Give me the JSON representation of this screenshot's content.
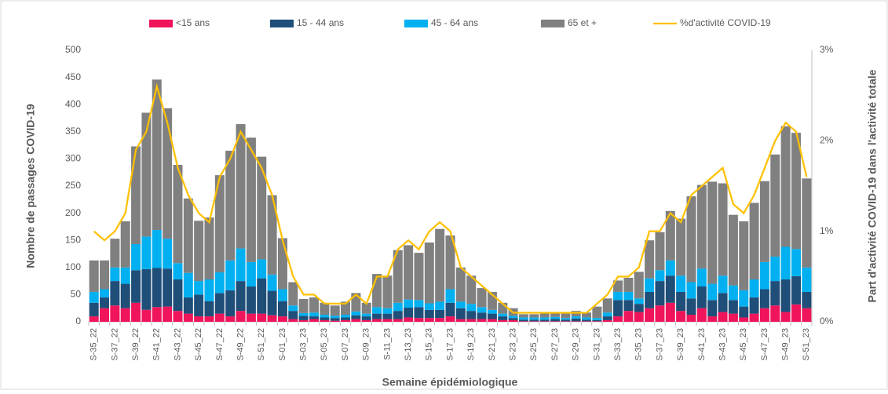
{
  "chart_data": {
    "type": "bar",
    "stacked": true,
    "x_label": "Semaine épidémiologique",
    "y_label": "Nombre de passages COVID-19",
    "y2_label": "Part d'activité COVID-19 dans l'activité totale",
    "categories": [
      "S-35_22",
      null,
      "S-37_22",
      null,
      "S-39_22",
      null,
      "S-41_22",
      null,
      "S-43_22",
      null,
      "S-45_22",
      null,
      "S-47_22",
      null,
      "S-49_22",
      null,
      "S-51_22",
      null,
      "S-01_23",
      null,
      "S-03_23",
      null,
      "S-05_23",
      null,
      "S-07_23",
      null,
      "S-09_23",
      null,
      "S-11_23",
      null,
      "S-13_23",
      null,
      "S-15_23",
      null,
      "S-17_23",
      null,
      "S-19_23",
      null,
      "S-21_23",
      null,
      "S-23_23",
      null,
      "S-25_23",
      null,
      "S-27_23",
      null,
      "S-29_23",
      null,
      "S-31_23",
      null,
      "S-33_23",
      null,
      "S-35_23",
      null,
      "S-37_23",
      null,
      "S-39_23",
      null,
      "S-41_23",
      null,
      "S-43_23",
      null,
      "S-45_23",
      null,
      "S-47_23",
      null,
      "S-49_23",
      null,
      "S-51_23"
    ],
    "series": [
      {
        "name": "<15 ans",
        "color": "#f0145a",
        "values": [
          10,
          25,
          30,
          25,
          35,
          22,
          27,
          28,
          20,
          15,
          10,
          10,
          15,
          10,
          20,
          15,
          15,
          12,
          10,
          5,
          3,
          5,
          3,
          2,
          3,
          5,
          3,
          5,
          5,
          5,
          8,
          7,
          7,
          7,
          10,
          5,
          5,
          5,
          5,
          3,
          3,
          1,
          1,
          1,
          1,
          1,
          1,
          1,
          1,
          3,
          10,
          20,
          18,
          25,
          30,
          35,
          20,
          13,
          25,
          10,
          18,
          15,
          8,
          15,
          25,
          30,
          18,
          32,
          25
        ]
      },
      {
        "name": "15 - 44 ans",
        "color": "#1f4e79",
        "values": [
          25,
          20,
          45,
          45,
          60,
          75,
          72,
          70,
          58,
          30,
          40,
          28,
          38,
          48,
          55,
          50,
          65,
          45,
          28,
          15,
          8,
          5,
          5,
          5,
          5,
          7,
          7,
          10,
          10,
          15,
          18,
          20,
          15,
          15,
          25,
          20,
          15,
          12,
          10,
          7,
          4,
          3,
          3,
          3,
          4,
          3,
          5,
          3,
          2,
          7,
          30,
          20,
          15,
          30,
          45,
          50,
          35,
          30,
          40,
          30,
          35,
          25,
          20,
          30,
          35,
          45,
          60,
          52,
          30
        ]
      },
      {
        "name": "45 - 64 ans",
        "color": "#00b0f0",
        "values": [
          20,
          15,
          25,
          30,
          48,
          60,
          70,
          55,
          30,
          45,
          25,
          40,
          38,
          55,
          60,
          45,
          35,
          30,
          22,
          10,
          5,
          7,
          5,
          4,
          5,
          7,
          5,
          12,
          10,
          15,
          15,
          13,
          12,
          15,
          25,
          12,
          13,
          10,
          7,
          5,
          4,
          4,
          4,
          4,
          4,
          3,
          4,
          4,
          4,
          7,
          15,
          15,
          10,
          25,
          20,
          28,
          30,
          30,
          33,
          30,
          32,
          27,
          30,
          33,
          50,
          45,
          60,
          50,
          45
        ]
      },
      {
        "name": "65 et +",
        "color": "#808080",
        "values": [
          58,
          53,
          53,
          85,
          180,
          228,
          277,
          240,
          181,
          137,
          111,
          114,
          179,
          202,
          229,
          229,
          189,
          146,
          94,
          43,
          26,
          28,
          22,
          19,
          24,
          34,
          20,
          61,
          60,
          97,
          100,
          87,
          112,
          134,
          99,
          63,
          52,
          35,
          33,
          20,
          14,
          6,
          6,
          9,
          9,
          11,
          10,
          9,
          21,
          26,
          21,
          26,
          49,
          70,
          70,
          91,
          105,
          158,
          154,
          188,
          170,
          130,
          127,
          141,
          149,
          188,
          222,
          214,
          164
        ]
      },
      {
        "name": "%d'activité COVID-19",
        "color": "#ffc000",
        "type": "line",
        "axis": "y2",
        "values": [
          1.0,
          0.9,
          1.0,
          1.2,
          1.9,
          2.1,
          2.6,
          2.2,
          1.7,
          1.4,
          1.2,
          1.1,
          1.6,
          1.8,
          2.1,
          1.9,
          1.7,
          1.4,
          0.9,
          0.5,
          0.3,
          0.3,
          0.2,
          0.2,
          0.2,
          0.3,
          0.2,
          0.5,
          0.5,
          0.8,
          0.9,
          0.8,
          1.0,
          1.1,
          1.0,
          0.6,
          0.5,
          0.4,
          0.3,
          0.2,
          0.1,
          0.1,
          0.1,
          0.1,
          0.1,
          0.1,
          0.1,
          0.1,
          0.2,
          0.3,
          0.5,
          0.5,
          0.6,
          1.0,
          1.0,
          1.2,
          1.1,
          1.4,
          1.5,
          1.6,
          1.7,
          1.3,
          1.2,
          1.4,
          1.7,
          2.0,
          2.2,
          2.1,
          1.6
        ]
      }
    ],
    "ylim": [
      0,
      500
    ],
    "yticks": [
      0,
      50,
      100,
      150,
      200,
      250,
      300,
      350,
      400,
      450,
      500
    ],
    "y2lim": [
      0,
      3
    ],
    "y2ticks": [
      {
        "value": 0,
        "label": "0%"
      },
      {
        "value": 1,
        "label": "1%"
      },
      {
        "value": 2,
        "label": "2%"
      },
      {
        "value": 3,
        "label": "3%"
      }
    ],
    "grid": false,
    "legend": "top"
  }
}
